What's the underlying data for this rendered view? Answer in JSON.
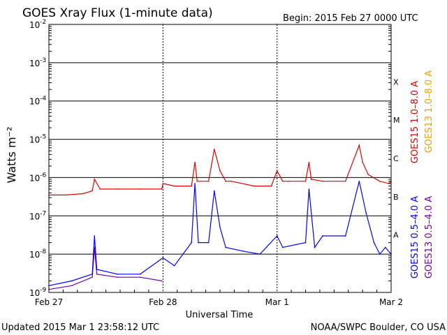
{
  "header": {
    "title": "GOES Xray Flux (1-minute data)",
    "begin": "Begin:  2015 Feb 27 0000 UTC"
  },
  "footer": {
    "updated": "Updated 2015 Mar  1 23:58:12 UTC",
    "credit": "NOAA/SWPC Boulder, CO USA"
  },
  "colors": {
    "goes15_long": "#e00000",
    "goes13_long": "#f0a000",
    "goes15_short": "#0000ff",
    "goes13_short": "#7000b0",
    "grid": "#000000",
    "background": "#ffffff"
  },
  "chart_data": {
    "type": "line",
    "title": "GOES Xray Flux (1-minute data)",
    "xlabel": "Universal Time",
    "ylabel": "Watts m⁻²",
    "yscale": "log",
    "ylim": [
      1e-09,
      0.01
    ],
    "xlim_days": [
      0,
      3
    ],
    "x_ticks": [
      {
        "day": 0,
        "label": "Feb 27"
      },
      {
        "day": 1,
        "label": "Feb 28"
      },
      {
        "day": 2,
        "label": "Mar 1"
      },
      {
        "day": 3,
        "label": "Mar 2"
      }
    ],
    "y_ticks": [
      {
        "exp": -2,
        "label": "10",
        "sup": "-2"
      },
      {
        "exp": -3,
        "label": "10",
        "sup": "-3"
      },
      {
        "exp": -4,
        "label": "10",
        "sup": "-4"
      },
      {
        "exp": -5,
        "label": "10",
        "sup": "-5"
      },
      {
        "exp": -6,
        "label": "10",
        "sup": "-6"
      },
      {
        "exp": -7,
        "label": "10",
        "sup": "-7"
      },
      {
        "exp": -8,
        "label": "10",
        "sup": "-8"
      },
      {
        "exp": -9,
        "label": "10",
        "sup": "-9"
      }
    ],
    "flare_classes": [
      {
        "label": "X",
        "exp": -3.5
      },
      {
        "label": "M",
        "exp": -4.5
      },
      {
        "label": "C",
        "exp": -5.5
      },
      {
        "label": "B",
        "exp": -6.5
      },
      {
        "label": "A",
        "exp": -7.5
      }
    ],
    "legend": [
      {
        "label": "GOES15 1.0–8.0 A",
        "color": "#e00000"
      },
      {
        "label": "GOES13 1.0–8.0 A",
        "color": "#f0a000"
      },
      {
        "label": "GOES15 0.5–4.0 A",
        "color": "#0000ff"
      },
      {
        "label": "GOES13 0.5–4.0 A",
        "color": "#7000b0"
      }
    ],
    "grid": true,
    "series": [
      {
        "name": "GOES15 1.0–8.0 A",
        "color": "#e00000",
        "x": [
          0,
          0.15,
          0.3,
          0.38,
          0.4,
          0.45,
          0.6,
          0.8,
          0.99,
          1.0,
          1.1,
          1.25,
          1.28,
          1.3,
          1.4,
          1.45,
          1.5,
          1.55,
          1.6,
          1.8,
          1.95,
          2.0,
          2.05,
          2.1,
          2.25,
          2.28,
          2.3,
          2.4,
          2.6,
          2.72,
          2.75,
          2.8,
          2.9,
          2.98,
          3.0
        ],
        "y": [
          3.5e-07,
          3.5e-07,
          3.8e-07,
          4.5e-07,
          9e-07,
          5e-07,
          5e-07,
          5e-07,
          5e-07,
          7e-07,
          6e-07,
          6e-07,
          2.5e-06,
          8e-07,
          8e-07,
          5.5e-06,
          1.5e-06,
          8e-07,
          8e-07,
          6e-07,
          6e-07,
          1.5e-06,
          8e-07,
          8e-07,
          8e-07,
          2.5e-06,
          9e-07,
          8e-07,
          8e-07,
          7e-06,
          2.5e-06,
          1.2e-06,
          8e-07,
          7e-07,
          8e-07
        ]
      },
      {
        "name": "GOES13 1.0–8.0 A",
        "color": "#f0a000",
        "x": [],
        "y": []
      },
      {
        "name": "GOES15 0.5–4.0 A",
        "color": "#0000ff",
        "x": [
          0,
          0.2,
          0.38,
          0.4,
          0.42,
          0.6,
          0.8,
          1.0,
          1.1,
          1.25,
          1.28,
          1.31,
          1.4,
          1.45,
          1.5,
          1.55,
          1.7,
          1.85,
          2.0,
          2.05,
          2.25,
          2.28,
          2.33,
          2.4,
          2.6,
          2.72,
          2.78,
          2.85,
          2.9,
          2.95,
          3.0
        ],
        "y": [
          1.5e-09,
          2e-09,
          3e-09,
          3e-08,
          4e-09,
          3e-09,
          3e-09,
          8e-09,
          5e-09,
          2e-08,
          7e-07,
          2e-08,
          2e-08,
          4.5e-07,
          5e-08,
          1.5e-08,
          1.2e-08,
          1e-08,
          3e-08,
          1.5e-08,
          2e-08,
          5e-07,
          1.5e-08,
          3e-08,
          3e-08,
          8e-07,
          1.2e-07,
          2e-08,
          1e-08,
          1.5e-08,
          1e-08
        ]
      },
      {
        "name": "GOES13 0.5–4.0 A",
        "color": "#7000b0",
        "x": [
          0,
          0.2,
          0.38,
          0.4,
          0.42,
          0.6,
          0.8,
          0.99
        ],
        "y": [
          1.2e-09,
          1.5e-09,
          2.5e-09,
          1.5e-08,
          3e-09,
          2.5e-09,
          2.5e-09,
          2e-09
        ]
      }
    ]
  }
}
